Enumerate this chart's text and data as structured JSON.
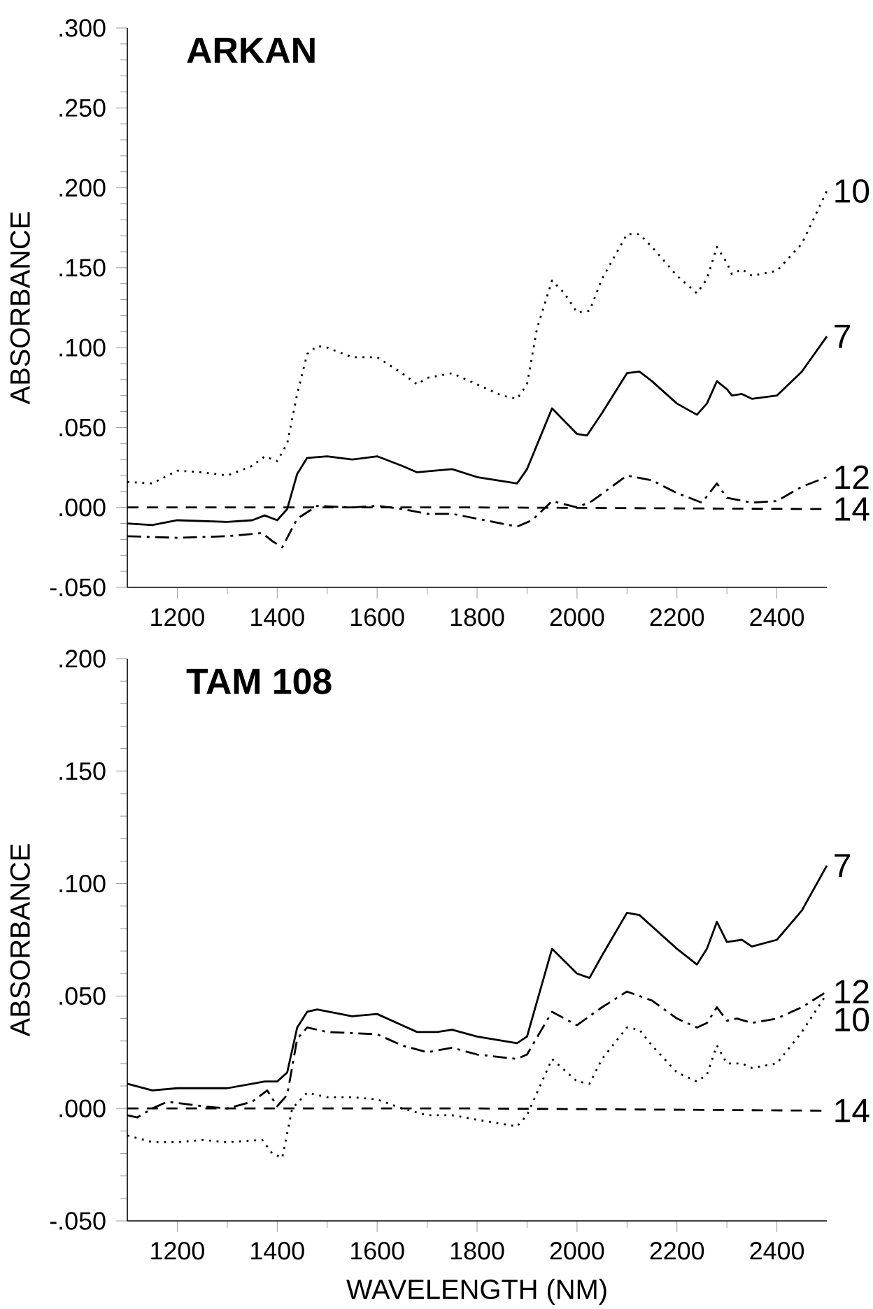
{
  "chart_data": [
    {
      "type": "line",
      "title": "ARKAN",
      "ylabel": "ABSORBANCE",
      "xlim": [
        1100,
        2500
      ],
      "ylim": [
        -0.05,
        0.3
      ],
      "xticks": [
        1200,
        1400,
        1600,
        1800,
        2000,
        2200,
        2400
      ],
      "yticks": [
        {
          "value": -0.05,
          "label": "-.050"
        },
        {
          "value": 0,
          "label": ".000"
        },
        {
          "value": 0.05,
          "label": ".050"
        },
        {
          "value": 0.1,
          "label": ".100"
        },
        {
          "value": 0.15,
          "label": ".150"
        },
        {
          "value": 0.2,
          "label": ".200"
        },
        {
          "value": 0.25,
          "label": ".250"
        },
        {
          "value": 0.3,
          "label": ".300"
        }
      ],
      "marker": "none",
      "grid": false,
      "legend": false,
      "series": [
        {
          "name": "10",
          "color": "#000000",
          "line_style": "dotted",
          "x": [
            1100,
            1150,
            1200,
            1250,
            1300,
            1350,
            1375,
            1400,
            1420,
            1440,
            1460,
            1480,
            1500,
            1550,
            1600,
            1650,
            1680,
            1700,
            1750,
            1800,
            1850,
            1880,
            1900,
            1920,
            1950,
            1975,
            2000,
            2025,
            2050,
            2100,
            2125,
            2150,
            2200,
            2240,
            2260,
            2280,
            2300,
            2310,
            2330,
            2350,
            2400,
            2450,
            2500
          ],
          "values": [
            0.016,
            0.015,
            0.023,
            0.022,
            0.02,
            0.026,
            0.032,
            0.029,
            0.04,
            0.071,
            0.096,
            0.101,
            0.1,
            0.094,
            0.094,
            0.084,
            0.077,
            0.081,
            0.084,
            0.077,
            0.07,
            0.068,
            0.077,
            0.112,
            0.142,
            0.134,
            0.122,
            0.123,
            0.143,
            0.171,
            0.171,
            0.163,
            0.145,
            0.134,
            0.143,
            0.163,
            0.153,
            0.146,
            0.149,
            0.145,
            0.148,
            0.165,
            0.198
          ]
        },
        {
          "name": "7",
          "color": "#000000",
          "line_style": "solid",
          "x": [
            1100,
            1150,
            1200,
            1300,
            1350,
            1375,
            1400,
            1420,
            1440,
            1460,
            1500,
            1550,
            1600,
            1650,
            1680,
            1750,
            1800,
            1880,
            1900,
            1950,
            2000,
            2020,
            2050,
            2100,
            2125,
            2150,
            2200,
            2240,
            2260,
            2280,
            2300,
            2310,
            2330,
            2350,
            2400,
            2450,
            2500
          ],
          "values": [
            -0.01,
            -0.011,
            -0.008,
            -0.009,
            -0.008,
            -0.005,
            -0.008,
            -0.001,
            0.021,
            0.031,
            0.032,
            0.03,
            0.032,
            0.026,
            0.022,
            0.024,
            0.019,
            0.015,
            0.024,
            0.062,
            0.046,
            0.045,
            0.059,
            0.084,
            0.085,
            0.079,
            0.065,
            0.058,
            0.065,
            0.079,
            0.074,
            0.07,
            0.071,
            0.068,
            0.07,
            0.085,
            0.107
          ]
        },
        {
          "name": "12",
          "color": "#000000",
          "line_style": "dashdot",
          "x": [
            1100,
            1200,
            1300,
            1370,
            1390,
            1410,
            1440,
            1480,
            1550,
            1600,
            1650,
            1700,
            1750,
            1800,
            1880,
            1910,
            1950,
            2000,
            2030,
            2100,
            2150,
            2200,
            2250,
            2280,
            2300,
            2350,
            2400,
            2450,
            2500
          ],
          "values": [
            -0.018,
            -0.019,
            -0.018,
            -0.016,
            -0.021,
            -0.025,
            -0.007,
            0.001,
            0.0,
            0.001,
            -0.001,
            -0.004,
            -0.004,
            -0.007,
            -0.012,
            -0.008,
            0.004,
            0.0,
            0.004,
            0.02,
            0.017,
            0.009,
            0.003,
            0.015,
            0.006,
            0.003,
            0.004,
            0.013,
            0.019
          ]
        },
        {
          "name": "14",
          "color": "#000000",
          "line_style": "dashed",
          "x": [
            1100,
            1800,
            2500
          ],
          "values": [
            0.0,
            0.0,
            -0.001
          ]
        }
      ]
    },
    {
      "type": "line",
      "title": "TAM 108",
      "xlabel": "WAVELENGTH (NM)",
      "ylabel": "ABSORBANCE",
      "xlim": [
        1100,
        2500
      ],
      "ylim": [
        -0.05,
        0.2
      ],
      "xticks": [
        1200,
        1400,
        1600,
        1800,
        2000,
        2200,
        2400
      ],
      "yticks": [
        {
          "value": -0.05,
          "label": "-.050"
        },
        {
          "value": 0,
          "label": ".000"
        },
        {
          "value": 0.05,
          "label": ".050"
        },
        {
          "value": 0.1,
          "label": ".100"
        },
        {
          "value": 0.15,
          "label": ".150"
        },
        {
          "value": 0.2,
          "label": ".200"
        }
      ],
      "marker": "none",
      "grid": false,
      "legend": false,
      "series": [
        {
          "name": "7",
          "color": "#000000",
          "line_style": "solid",
          "x": [
            1100,
            1150,
            1200,
            1300,
            1350,
            1375,
            1400,
            1420,
            1440,
            1460,
            1480,
            1550,
            1600,
            1650,
            1680,
            1720,
            1750,
            1800,
            1880,
            1900,
            1950,
            2000,
            2025,
            2050,
            2100,
            2125,
            2150,
            2200,
            2240,
            2260,
            2280,
            2300,
            2330,
            2350,
            2400,
            2450,
            2500
          ],
          "values": [
            0.011,
            0.008,
            0.009,
            0.009,
            0.011,
            0.012,
            0.012,
            0.016,
            0.036,
            0.043,
            0.044,
            0.041,
            0.042,
            0.037,
            0.034,
            0.034,
            0.035,
            0.032,
            0.029,
            0.032,
            0.071,
            0.06,
            0.058,
            0.068,
            0.087,
            0.086,
            0.081,
            0.071,
            0.064,
            0.071,
            0.083,
            0.074,
            0.075,
            0.072,
            0.075,
            0.088,
            0.108
          ]
        },
        {
          "name": "12",
          "color": "#000000",
          "line_style": "dashdot",
          "x": [
            1100,
            1120,
            1150,
            1180,
            1250,
            1300,
            1350,
            1380,
            1400,
            1420,
            1440,
            1460,
            1500,
            1600,
            1650,
            1700,
            1750,
            1800,
            1880,
            1900,
            1950,
            2000,
            2050,
            2100,
            2150,
            2200,
            2240,
            2260,
            2280,
            2300,
            2320,
            2350,
            2400,
            2450,
            2500
          ],
          "values": [
            -0.003,
            -0.004,
            0.0,
            0.003,
            0.001,
            0.0,
            0.003,
            0.008,
            0.001,
            0.006,
            0.031,
            0.036,
            0.034,
            0.033,
            0.028,
            0.025,
            0.027,
            0.024,
            0.022,
            0.024,
            0.043,
            0.037,
            0.045,
            0.052,
            0.048,
            0.04,
            0.036,
            0.038,
            0.045,
            0.039,
            0.04,
            0.038,
            0.04,
            0.045,
            0.052
          ]
        },
        {
          "name": "10",
          "color": "#000000",
          "line_style": "dotted",
          "x": [
            1100,
            1150,
            1200,
            1250,
            1300,
            1370,
            1390,
            1410,
            1430,
            1460,
            1500,
            1550,
            1600,
            1650,
            1700,
            1750,
            1800,
            1880,
            1900,
            1950,
            2000,
            2025,
            2050,
            2100,
            2125,
            2150,
            2200,
            2240,
            2260,
            2280,
            2300,
            2330,
            2350,
            2400,
            2450,
            2500
          ],
          "values": [
            -0.012,
            -0.015,
            -0.015,
            -0.014,
            -0.015,
            -0.014,
            -0.02,
            -0.022,
            0.0,
            0.007,
            0.005,
            0.005,
            0.004,
            0.0,
            -0.003,
            -0.003,
            -0.005,
            -0.008,
            -0.003,
            0.022,
            0.012,
            0.011,
            0.022,
            0.036,
            0.035,
            0.028,
            0.016,
            0.012,
            0.015,
            0.028,
            0.02,
            0.02,
            0.018,
            0.02,
            0.034,
            0.051
          ]
        },
        {
          "name": "14",
          "color": "#000000",
          "line_style": "dashed",
          "x": [
            1100,
            1800,
            2500
          ],
          "values": [
            0.0,
            0.0,
            -0.001
          ]
        }
      ]
    }
  ]
}
